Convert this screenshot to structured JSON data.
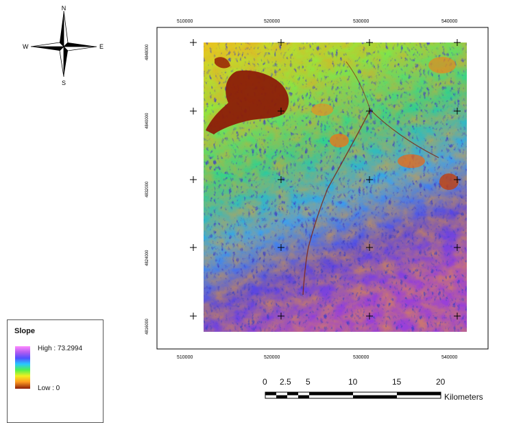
{
  "north_arrow": {
    "n": "N",
    "s": "S",
    "e": "E",
    "w": "W"
  },
  "top_ticks": [
    "510000",
    "520000",
    "530000",
    "540000"
  ],
  "bottom_ticks": [
    "510000",
    "520000",
    "530000",
    "540000"
  ],
  "left_ticks": [
    "4848000",
    "4840000",
    "4832000",
    "4824000",
    "4816000"
  ],
  "legend": {
    "title": "Slope",
    "high": "High : 73.2994",
    "low": "Low : 0",
    "colors": [
      "#ff8cff",
      "#b45cf0",
      "#5050ff",
      "#28c8ff",
      "#50f050",
      "#f0f020",
      "#ff9c20",
      "#8c1e08"
    ]
  },
  "scalebar": {
    "labels": [
      "0",
      "2.5",
      "5",
      "10",
      "15",
      "20"
    ],
    "unit": "Kilometers"
  }
}
